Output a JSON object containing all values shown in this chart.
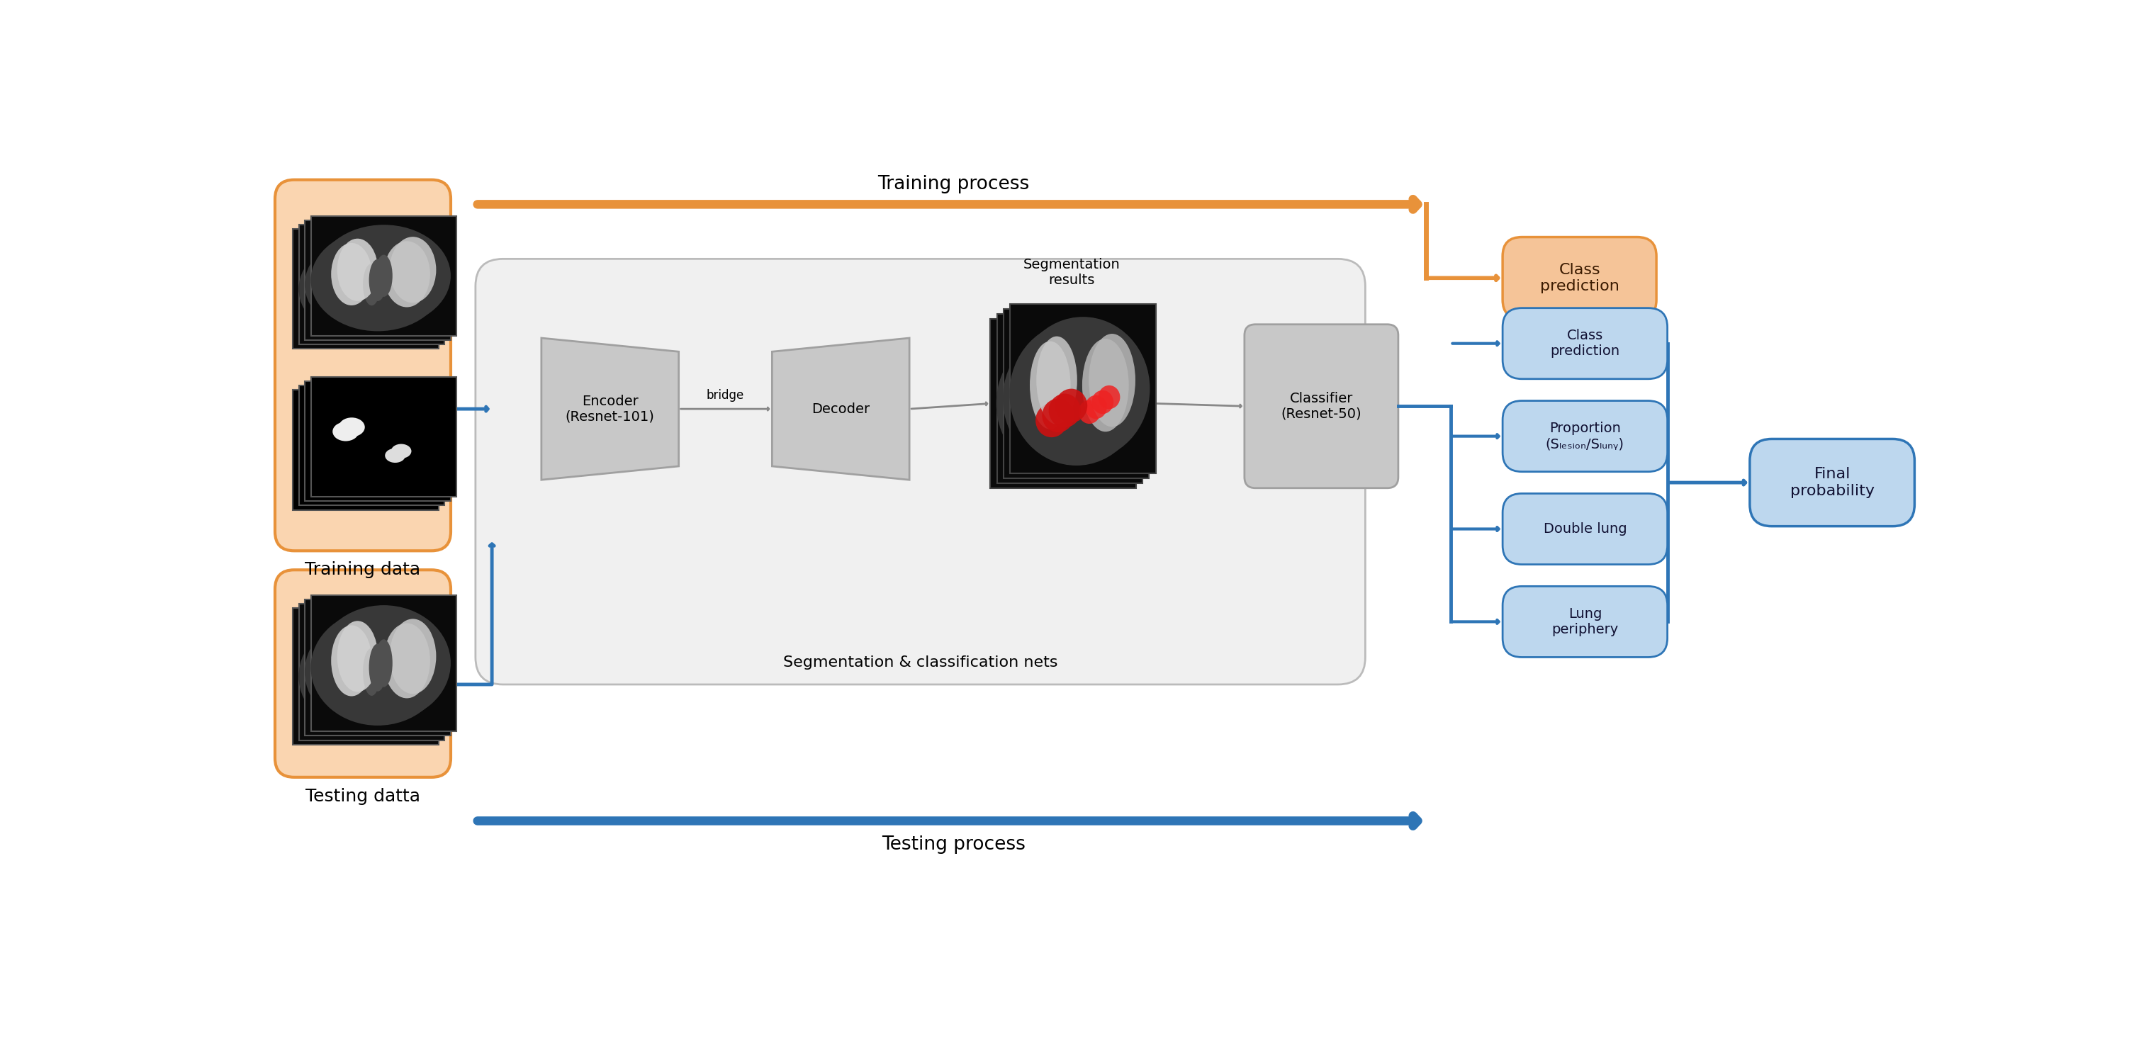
{
  "bg_color": "#ffffff",
  "orange_color": "#E8923A",
  "orange_box_fill": "#F5C498",
  "blue_color": "#2E75B6",
  "blue_box_fill": "#BDD7EE",
  "gray_box_fill": "#C8C8C8",
  "gray_box_stroke": "#A0A0A0",
  "outer_box_fill": "#F0F0F0",
  "outer_box_stroke": "#BBBBBB",
  "training_data_bg": "#FADADC",
  "testing_data_bg": "#FADADC",
  "title_train": "Training process",
  "title_test": "Testing process",
  "label_training": "Training data",
  "label_testing": "Testing datta",
  "encoder_label": "Encoder\n(Resnet-101)",
  "bridge_label": "bridge",
  "decoder_label": "Decoder",
  "seg_results_label": "Segmentation\nresults",
  "classifier_label": "Classifier\n(Resnet-50)",
  "seg_net_label": "Segmentation & classification nets",
  "class_pred_orange_label": "Class\nprediction",
  "class_pred_blue_label": "Class\nprediction",
  "proportion_label": "Proportion\n(Sₗₑₛᵢₒₙ/Sₗᵤₙᵧ)",
  "double_lung_label": "Double lung",
  "lung_periphery_label": "Lung\nperiphery",
  "final_prob_label": "Final\nprobability",
  "train_data_bg_color": "#FAD5B0",
  "test_data_bg_color": "#FAD5B0"
}
